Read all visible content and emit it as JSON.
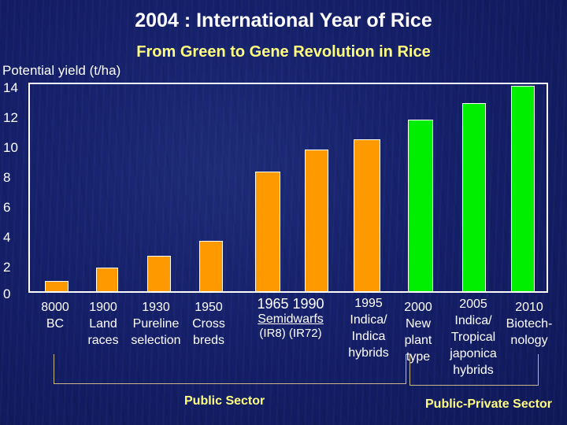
{
  "title": "2004 : International Year of Rice",
  "subtitle": "From Green to Gene Revolution in Rice",
  "colors": {
    "public": "#ff9900",
    "public_private": "#00ee00",
    "background": "#15206a",
    "subtitle": "#ffff80"
  },
  "chart_data": {
    "type": "bar",
    "title": "From Green to Gene Revolution in Rice",
    "ylabel": "Potential yield (t/ha)",
    "xlabel": "",
    "ylim": [
      0,
      14
    ],
    "yticks": [
      0,
      2,
      4,
      6,
      8,
      10,
      12,
      14
    ],
    "grid": false,
    "categories": [
      "8000 BC",
      "1900 Land races",
      "1930 Pureline selection",
      "1950 Cross breds",
      "1965 Semidwarfs (IR8)",
      "1990 Semidwarfs (IR72)",
      "1995 Indica/Indica hybrids",
      "2000 New plant type",
      "2005 Indica/Tropical japonica hybrids",
      "2010 Biotechnology"
    ],
    "values": [
      0.7,
      1.6,
      2.4,
      3.4,
      8.1,
      9.6,
      10.3,
      11.6,
      12.7,
      13.9
    ],
    "series": [
      {
        "name": "Public Sector",
        "color": "#ff9900",
        "categories": [
          "8000 BC",
          "1900",
          "1930",
          "1950",
          "1965",
          "1990",
          "1995"
        ],
        "values": [
          0.7,
          1.6,
          2.4,
          3.4,
          8.1,
          9.6,
          10.3
        ]
      },
      {
        "name": "Public-Private Sector",
        "color": "#00ee00",
        "categories": [
          "2000",
          "2005",
          "2010"
        ],
        "values": [
          11.6,
          12.7,
          13.9
        ]
      }
    ]
  },
  "axis": {
    "ylabel": "Potential yield (t/ha)",
    "ticks": [
      "14",
      "12",
      "10",
      "8",
      "6",
      "4",
      "2",
      "0"
    ]
  },
  "labels": {
    "l8000_1": "8000",
    "l8000_2": "BC",
    "l1900_1": "1900",
    "l1900_2": "Land",
    "l1900_3": "races",
    "l1930_1": "1930",
    "l1930_2": "Pureline",
    "l1930_3": "selection",
    "l1950_1": "1950",
    "l1950_2": "Cross",
    "l1950_3": "breds",
    "l1965_1990": "1965  1990",
    "semidwarfs": "Semidwarfs",
    "ir": "(IR8) (IR72)",
    "l1995_1": "1995",
    "l1995_2": "Indica/",
    "l1995_3": "Indica",
    "l1995_4": "hybrids",
    "l2000_1": "2000",
    "l2000_2": "New",
    "l2000_3": "plant",
    "l2000_4": "type",
    "l2005_1": "2005",
    "l2005_2": "Indica/",
    "l2005_3": "Tropical",
    "l2005_4": "japonica",
    "l2005_5": "hybrids",
    "l2010_1": "2010",
    "l2010_2": "Biotech-",
    "l2010_3": "nology"
  },
  "sectors": {
    "public": "Public Sector",
    "public_private": "Public-Private Sector"
  }
}
